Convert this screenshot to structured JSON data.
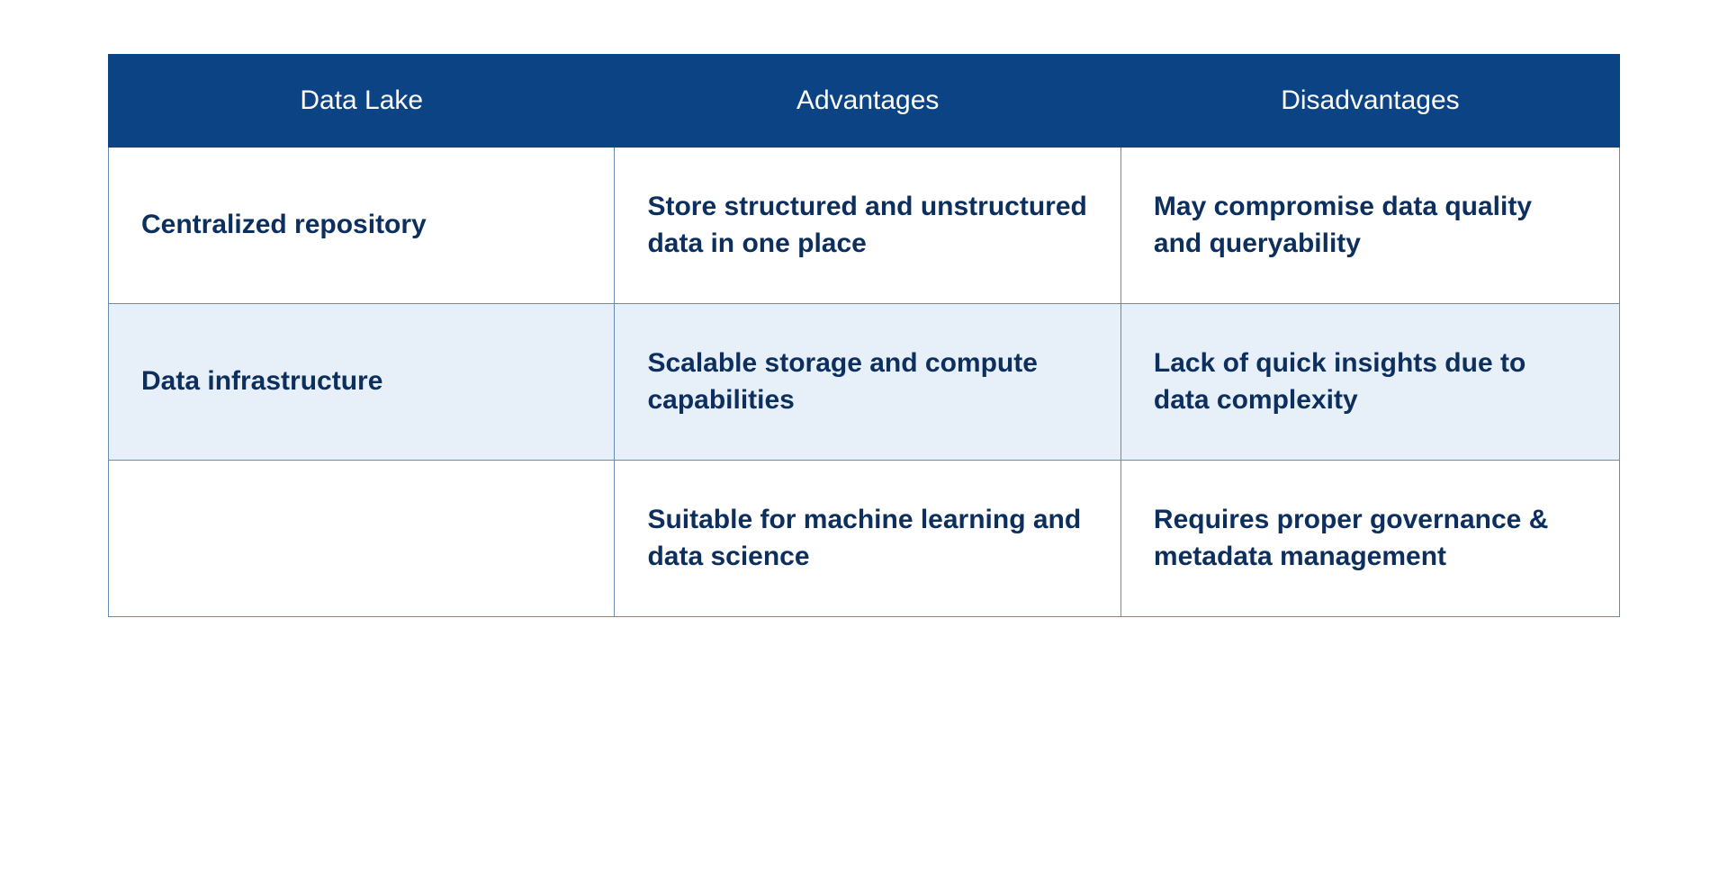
{
  "table": {
    "type": "table",
    "header_background_color": "#0c4384",
    "header_text_color": "#ffffff",
    "header_font_weight": 400,
    "header_font_size_pt": 22,
    "body_text_color": "#0c2f5e",
    "body_font_size_pt": 22,
    "body_font_weight": 600,
    "col1_font_weight": 700,
    "border_color": "#678bb3",
    "row_alt_background_color": "#e7eff9",
    "row_background_color": "#ffffff",
    "column_widths_pct": [
      33.5,
      33.5,
      33
    ],
    "columns": [
      "Data Lake",
      "Advantages",
      "Disadvantages"
    ],
    "rows": [
      [
        "Centralized repository",
        "Store structured and unstructured data in one place",
        "May compromise data quality and queryability"
      ],
      [
        "Data infrastructure",
        "Scalable storage and compute capabilities",
        "Lack of quick insights due to data complexity"
      ],
      [
        "",
        "Suitable for machine learning and data science",
        "Requires proper governance & metadata management"
      ]
    ]
  }
}
